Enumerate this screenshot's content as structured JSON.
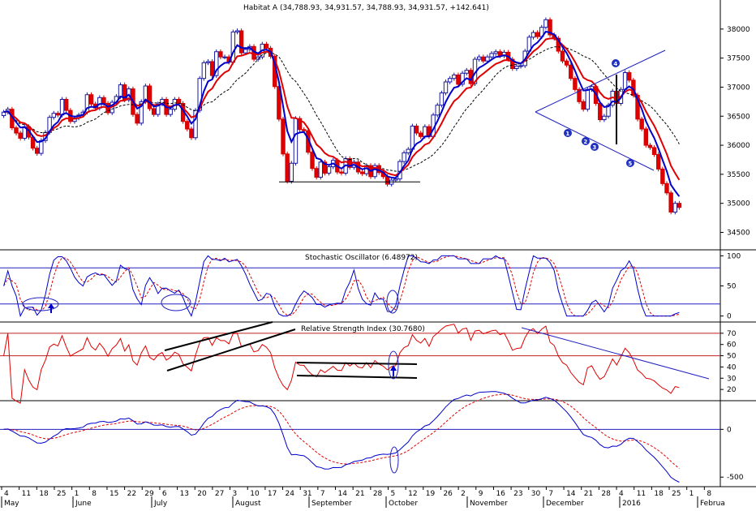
{
  "chart_data": {
    "type": "candlestick",
    "title": "Habitat A (34,788.93, 34,931.57, 34,788.93, 34,931.57, +142.641)",
    "x_axis": {
      "day_ticks": [
        "4",
        "11",
        "18",
        "25",
        "1",
        "8",
        "15",
        "22",
        "29",
        "6",
        "13",
        "20",
        "27",
        "3",
        "10",
        "17",
        "24",
        "31",
        "7",
        "14",
        "21",
        "28",
        "5",
        "12",
        "19",
        "26",
        "2",
        "9",
        "16",
        "23",
        "30",
        "7",
        "14",
        "21",
        "28",
        "4",
        "11",
        "18",
        "25",
        "1",
        "8"
      ],
      "month_labels": [
        "May",
        "June",
        "July",
        "August",
        "September",
        "October",
        "November",
        "December",
        "2016",
        "Februa"
      ]
    },
    "price_panel": {
      "y_ticks": [
        "38000",
        "37500",
        "37000",
        "36500",
        "36000",
        "35500",
        "35000",
        "34500"
      ],
      "ylim": [
        34200,
        38500
      ],
      "support_line_y": 35370,
      "triangle_points": [
        "1",
        "2",
        "3",
        "4",
        "5"
      ],
      "series": [
        {
          "name": "Close",
          "closes": [
            36570,
            36620,
            36300,
            36210,
            36120,
            36320,
            36140,
            35950,
            35860,
            36080,
            36220,
            36480,
            36550,
            36520,
            36790,
            36600,
            36410,
            36470,
            36520,
            36570,
            36870,
            36710,
            36640,
            36820,
            36720,
            36560,
            36740,
            36840,
            37040,
            36780,
            36970,
            36530,
            36380,
            36750,
            37020,
            36630,
            36530,
            36710,
            36790,
            36530,
            36620,
            36790,
            36720,
            36410,
            36280,
            36130,
            36600,
            37150,
            37420,
            37440,
            37200,
            37610,
            37520,
            37520,
            37430,
            37950,
            37970,
            37590,
            37650,
            37700,
            37480,
            37520,
            37740,
            37670,
            37530,
            37010,
            36450,
            35850,
            35380,
            35690,
            36460,
            36270,
            36250,
            35880,
            35600,
            35450,
            35710,
            35520,
            35630,
            35740,
            35540,
            35520,
            35770,
            35620,
            35710,
            35540,
            35510,
            35650,
            35460,
            35650,
            35530,
            35460,
            35330,
            35400,
            35420,
            35720,
            35870,
            35930,
            36330,
            36210,
            36150,
            36320,
            36150,
            36520,
            36690,
            36900,
            37090,
            37150,
            37210,
            37050,
            37240,
            37290,
            37060,
            37480,
            37520,
            37450,
            37520,
            37580,
            37610,
            37540,
            37600,
            37480,
            37320,
            37360,
            37370,
            37620,
            37860,
            37940,
            37870,
            38030,
            38160,
            37900,
            37840,
            37620,
            37450,
            37380,
            37150,
            36960,
            36750,
            36620,
            36960,
            37010,
            36720,
            36440,
            36500,
            36690,
            36930,
            36720,
            36960,
            37250,
            37120,
            36860,
            36450,
            36280,
            36000,
            35960,
            35840,
            35590,
            35340,
            35180,
            34850,
            35000,
            34930
          ]
        }
      ],
      "moving_averages": [
        {
          "name": "MA short",
          "color": "#0000cc"
        },
        {
          "name": "MA medium",
          "color": "#e00000"
        },
        {
          "name": "MA long",
          "color": "#000000",
          "dashed": true
        }
      ]
    },
    "stochastic_panel": {
      "label": "Stochastic Oscillator (6.48972)",
      "y_ticks": [
        "100",
        "50",
        "0"
      ],
      "ylim": [
        -10,
        110
      ],
      "levels": [
        80,
        20
      ]
    },
    "rsi_panel": {
      "label": "Relative Strength Index (30.7680)",
      "y_ticks": [
        "70",
        "60",
        "50",
        "40",
        "30",
        "20"
      ],
      "ylim": [
        10,
        80
      ],
      "levels": [
        70,
        50
      ]
    },
    "macd_panel": {
      "y_ticks": [
        "0",
        "-500"
      ],
      "ylim": [
        -600,
        300
      ],
      "zero_line": 0
    }
  }
}
